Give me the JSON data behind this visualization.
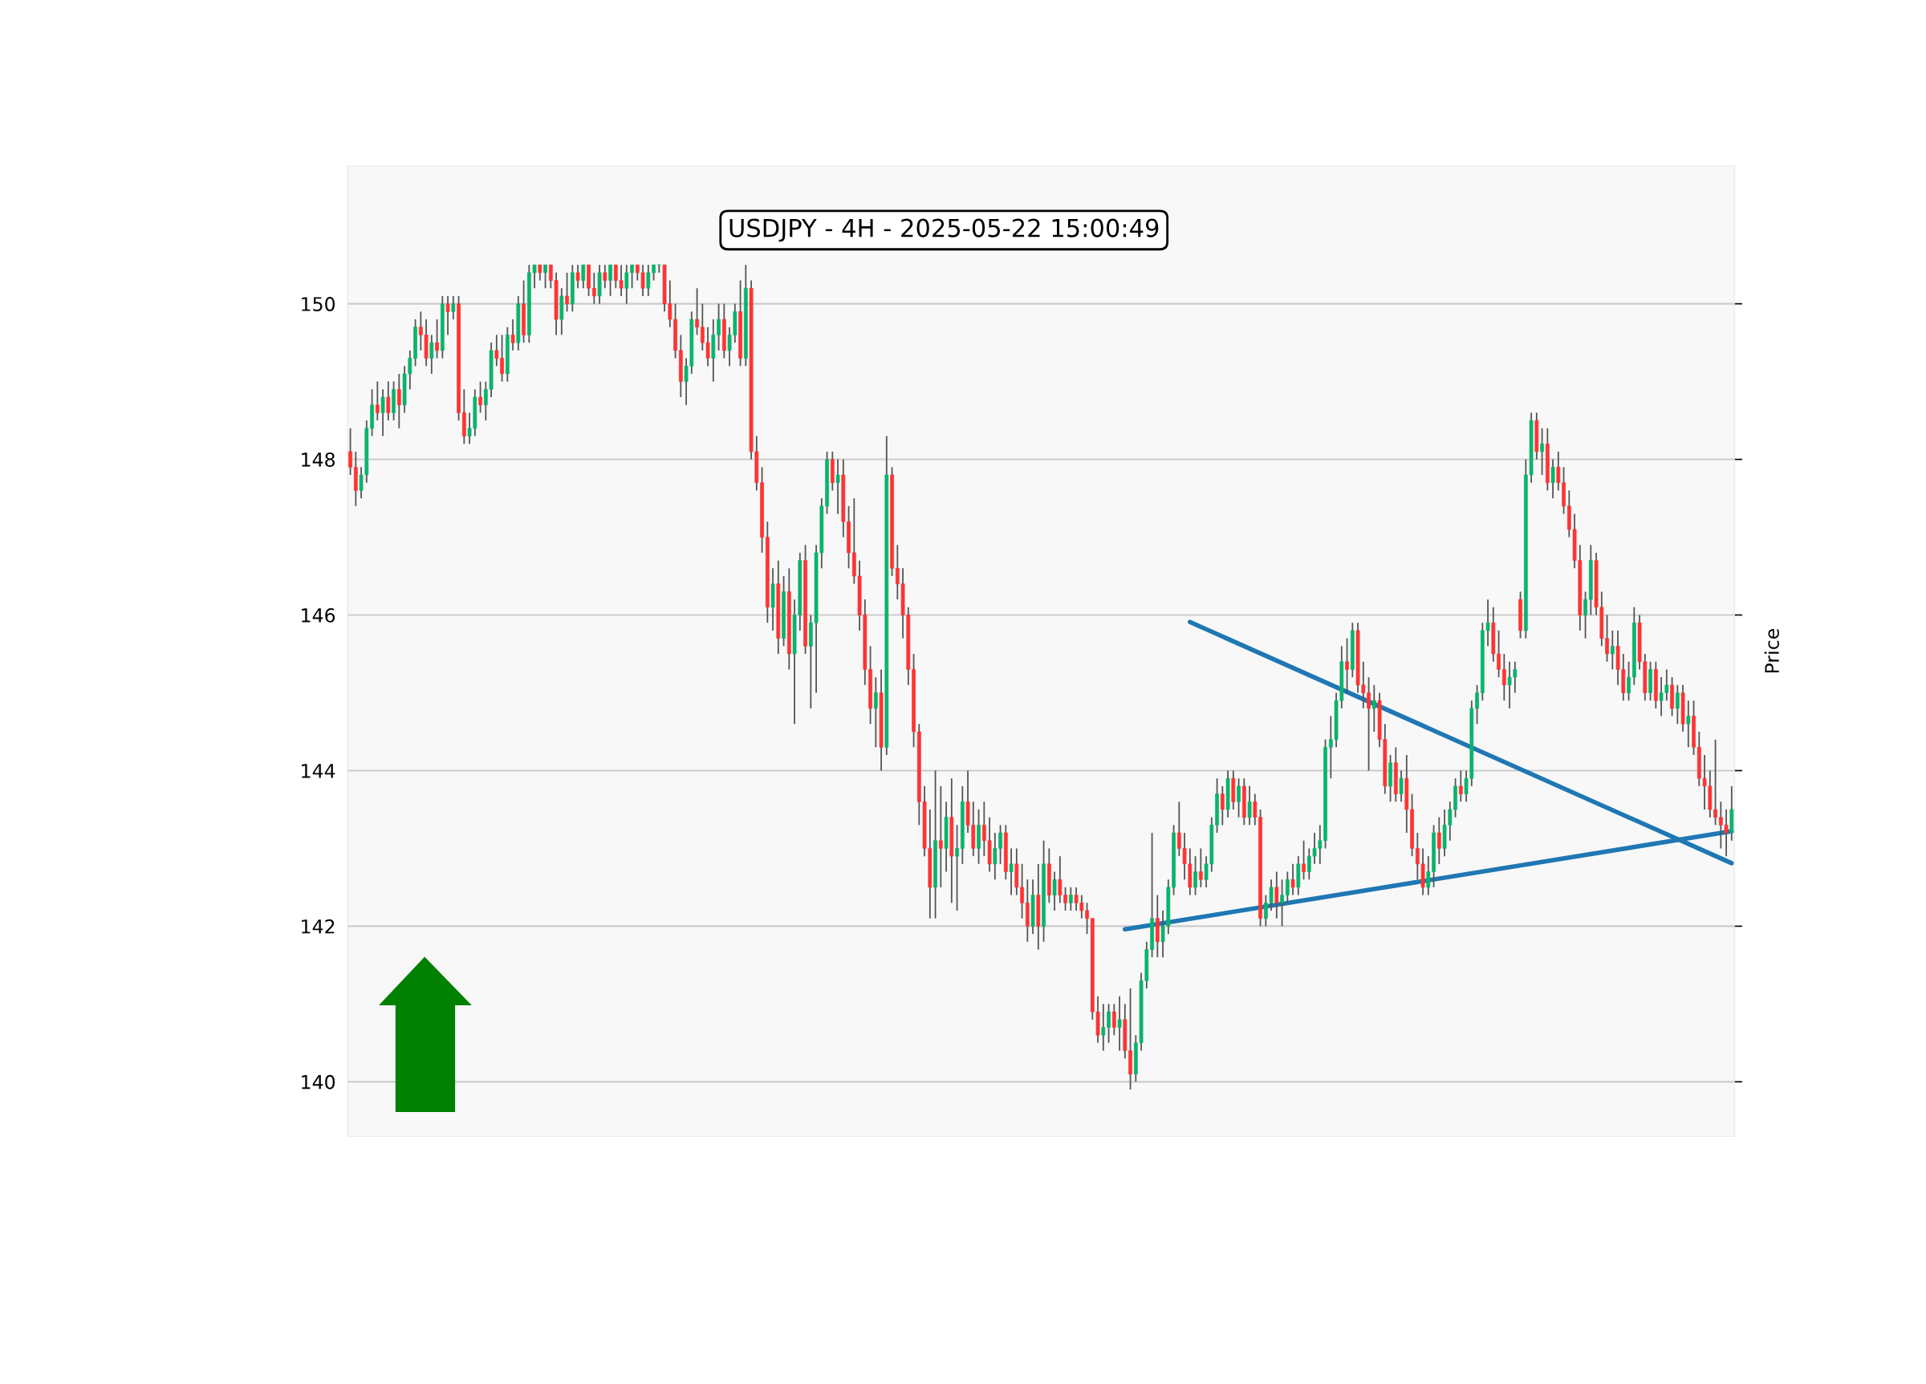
{
  "chart_data": {
    "type": "candlestick",
    "title": "USDJPY - 4H - 2025-05-22 15:00:49",
    "ylabel": "Price",
    "ylim": [
      139.3,
      151.77
    ],
    "yticks": [
      140,
      142,
      144,
      146,
      148,
      150
    ],
    "grid": "y",
    "tick_labels": "y",
    "categories": [
      null,
      null,
      null,
      null,
      null,
      null,
      null,
      null,
      null,
      null,
      null,
      null,
      null,
      null,
      null,
      null,
      null,
      null,
      null,
      null,
      null,
      null,
      null,
      null,
      null,
      null,
      null,
      null,
      null,
      null,
      null,
      null,
      null,
      null,
      null,
      null,
      null,
      null,
      null,
      null,
      null,
      null,
      null,
      null,
      null,
      null,
      null,
      null,
      null,
      null,
      null,
      null,
      null,
      null,
      null,
      null,
      null,
      null,
      null,
      null,
      null,
      null,
      null,
      null,
      null,
      null,
      null,
      null,
      null,
      null,
      null,
      null,
      null,
      null,
      null,
      null,
      null,
      null,
      null,
      null,
      null,
      null,
      null,
      null,
      null,
      null,
      null,
      null,
      null,
      null,
      null,
      null,
      null,
      null,
      null,
      null,
      null,
      null,
      null,
      null,
      null,
      null,
      null,
      null,
      null,
      null,
      null,
      null,
      null,
      null,
      null,
      null,
      null,
      null,
      null,
      null,
      null,
      null,
      null,
      null,
      null,
      null,
      null,
      null,
      null,
      null,
      null,
      null,
      null,
      null,
      null,
      null,
      null,
      null,
      null,
      null,
      null,
      null,
      null,
      null,
      null,
      null,
      null,
      null,
      null,
      null,
      null,
      null,
      null,
      null,
      null,
      null,
      null,
      null,
      null,
      null,
      null,
      null,
      null,
      null,
      null,
      null,
      null,
      null,
      null,
      null,
      null,
      null,
      null,
      null,
      null,
      null,
      null,
      null,
      null,
      null,
      null,
      null,
      null,
      null,
      null,
      null,
      null,
      null,
      null,
      null,
      null,
      null,
      null,
      null,
      null,
      null,
      null,
      null,
      null,
      null,
      null,
      null,
      null,
      null,
      null,
      null,
      null,
      null,
      null,
      null,
      null,
      null,
      null,
      null,
      null,
      null,
      null,
      null,
      null,
      null,
      null,
      null,
      null,
      null,
      null,
      null,
      null,
      null,
      null,
      null,
      null,
      null,
      null,
      null,
      null,
      null,
      null,
      null,
      null,
      null,
      null,
      null,
      null,
      null,
      null,
      null,
      null,
      null,
      null,
      null,
      null,
      null,
      null,
      null,
      null,
      null,
      null,
      null,
      null,
      null
    ],
    "ohlc": [
      [
        148.1,
        148.4,
        147.8,
        147.9
      ],
      [
        147.9,
        148.1,
        147.4,
        147.6
      ],
      [
        147.6,
        147.9,
        147.5,
        147.8
      ],
      [
        147.8,
        148.5,
        147.7,
        148.4
      ],
      [
        148.4,
        148.9,
        148.3,
        148.7
      ],
      [
        148.7,
        149.0,
        148.5,
        148.6
      ],
      [
        148.6,
        148.9,
        148.3,
        148.8
      ],
      [
        148.8,
        149.0,
        148.5,
        148.6
      ],
      [
        148.6,
        149.0,
        148.5,
        148.9
      ],
      [
        148.9,
        149.1,
        148.4,
        148.7
      ],
      [
        148.7,
        149.2,
        148.6,
        149.1
      ],
      [
        149.1,
        149.4,
        148.9,
        149.3
      ],
      [
        149.3,
        149.8,
        149.2,
        149.7
      ],
      [
        149.7,
        149.9,
        149.4,
        149.6
      ],
      [
        149.6,
        149.8,
        149.2,
        149.3
      ],
      [
        149.3,
        149.6,
        149.1,
        149.5
      ],
      [
        149.5,
        149.8,
        149.3,
        149.4
      ],
      [
        149.4,
        150.1,
        149.3,
        150.0
      ],
      [
        150.0,
        150.1,
        149.6,
        149.9
      ],
      [
        149.9,
        150.1,
        149.8,
        150.0
      ],
      [
        150.0,
        150.1,
        148.5,
        148.6
      ],
      [
        148.6,
        148.9,
        148.2,
        148.3
      ],
      [
        148.3,
        148.6,
        148.2,
        148.4
      ],
      [
        148.4,
        148.9,
        148.3,
        148.8
      ],
      [
        148.8,
        149.0,
        148.6,
        148.7
      ],
      [
        148.7,
        149.0,
        148.5,
        148.9
      ],
      [
        148.9,
        149.5,
        148.8,
        149.4
      ],
      [
        149.4,
        149.6,
        149.2,
        149.3
      ],
      [
        149.3,
        149.6,
        149.0,
        149.1
      ],
      [
        149.1,
        149.7,
        149.0,
        149.6
      ],
      [
        149.6,
        149.8,
        149.4,
        149.5
      ],
      [
        149.5,
        150.1,
        149.4,
        150.0
      ],
      [
        150.0,
        150.3,
        149.5,
        149.6
      ],
      [
        149.6,
        150.5,
        149.5,
        150.4
      ],
      [
        150.4,
        150.5,
        150.2,
        150.5
      ],
      [
        150.5,
        150.5,
        150.3,
        150.4
      ],
      [
        150.4,
        150.5,
        150.2,
        150.5
      ],
      [
        150.5,
        150.5,
        150.2,
        150.3
      ],
      [
        150.3,
        150.4,
        149.6,
        149.8
      ],
      [
        149.8,
        150.2,
        149.6,
        150.1
      ],
      [
        150.1,
        150.4,
        149.9,
        150.0
      ],
      [
        150.0,
        150.5,
        149.9,
        150.4
      ],
      [
        150.4,
        150.5,
        150.2,
        150.3
      ],
      [
        150.3,
        150.5,
        150.2,
        150.5
      ],
      [
        150.5,
        150.5,
        150.1,
        150.2
      ],
      [
        150.2,
        150.4,
        150.0,
        150.1
      ],
      [
        150.1,
        150.5,
        150.0,
        150.4
      ],
      [
        150.4,
        150.5,
        150.2,
        150.3
      ],
      [
        150.3,
        150.5,
        150.1,
        150.5
      ],
      [
        150.5,
        150.5,
        150.2,
        150.3
      ],
      [
        150.3,
        150.5,
        150.1,
        150.2
      ],
      [
        150.2,
        150.5,
        150.0,
        150.4
      ],
      [
        150.4,
        150.5,
        150.2,
        150.5
      ],
      [
        150.5,
        150.5,
        150.3,
        150.4
      ],
      [
        150.4,
        150.5,
        150.1,
        150.2
      ],
      [
        150.2,
        150.5,
        150.1,
        150.4
      ],
      [
        150.4,
        150.5,
        150.3,
        150.5
      ],
      [
        150.5,
        150.5,
        150.4,
        150.5
      ],
      [
        150.5,
        150.5,
        149.9,
        150.0
      ],
      [
        150.0,
        150.3,
        149.7,
        149.8
      ],
      [
        149.8,
        150.0,
        149.3,
        149.4
      ],
      [
        149.4,
        149.6,
        148.8,
        149.0
      ],
      [
        149.0,
        149.3,
        148.7,
        149.2
      ],
      [
        149.2,
        149.9,
        149.1,
        149.8
      ],
      [
        149.8,
        150.2,
        149.6,
        149.7
      ],
      [
        149.7,
        150.0,
        149.4,
        149.5
      ],
      [
        149.5,
        149.7,
        149.2,
        149.3
      ],
      [
        149.3,
        149.8,
        149.0,
        149.6
      ],
      [
        149.6,
        150.0,
        149.4,
        149.8
      ],
      [
        149.8,
        150.0,
        149.3,
        149.4
      ],
      [
        149.4,
        149.7,
        149.2,
        149.6
      ],
      [
        149.6,
        150.0,
        149.5,
        149.9
      ],
      [
        149.9,
        150.3,
        149.2,
        149.3
      ],
      [
        149.3,
        150.5,
        149.2,
        150.2
      ],
      [
        150.2,
        150.3,
        148.0,
        148.1
      ],
      [
        148.1,
        148.3,
        147.6,
        147.7
      ],
      [
        147.7,
        147.9,
        146.8,
        147.0
      ],
      [
        147.0,
        147.2,
        145.9,
        146.1
      ],
      [
        146.1,
        146.6,
        145.8,
        146.4
      ],
      [
        146.4,
        146.7,
        145.5,
        145.7
      ],
      [
        145.7,
        146.5,
        145.6,
        146.3
      ],
      [
        146.3,
        146.6,
        145.3,
        145.5
      ],
      [
        145.5,
        146.2,
        144.6,
        146.0
      ],
      [
        146.0,
        146.8,
        145.8,
        146.7
      ],
      [
        146.7,
        146.9,
        145.5,
        145.6
      ],
      [
        145.6,
        146.0,
        144.8,
        145.9
      ],
      [
        145.9,
        146.9,
        145.0,
        146.8
      ],
      [
        146.8,
        147.5,
        146.6,
        147.4
      ],
      [
        147.4,
        148.1,
        147.3,
        148.0
      ],
      [
        148.0,
        148.1,
        147.6,
        147.7
      ],
      [
        147.7,
        148.0,
        147.3,
        147.8
      ],
      [
        147.8,
        148.0,
        147.0,
        147.2
      ],
      [
        147.2,
        147.4,
        146.6,
        146.8
      ],
      [
        146.8,
        147.5,
        146.4,
        146.5
      ],
      [
        146.5,
        146.7,
        145.8,
        146.0
      ],
      [
        146.0,
        146.2,
        145.1,
        145.3
      ],
      [
        145.3,
        145.6,
        144.6,
        144.8
      ],
      [
        144.8,
        145.2,
        144.3,
        145.0
      ],
      [
        145.0,
        145.3,
        144.0,
        144.3
      ],
      [
        144.3,
        148.3,
        144.2,
        147.8
      ],
      [
        147.8,
        147.9,
        146.5,
        146.6
      ],
      [
        146.6,
        146.9,
        146.2,
        146.4
      ],
      [
        146.4,
        146.6,
        145.7,
        146.0
      ],
      [
        146.0,
        146.1,
        145.1,
        145.3
      ],
      [
        145.3,
        145.5,
        144.3,
        144.5
      ],
      [
        144.5,
        144.6,
        143.3,
        143.6
      ],
      [
        143.6,
        143.8,
        142.9,
        143.0
      ],
      [
        143.0,
        143.5,
        142.1,
        142.5
      ],
      [
        142.5,
        144.0,
        142.1,
        143.1
      ],
      [
        143.1,
        143.8,
        142.5,
        143.0
      ],
      [
        143.0,
        143.6,
        142.7,
        143.4
      ],
      [
        143.4,
        143.9,
        142.3,
        142.9
      ],
      [
        142.9,
        143.3,
        142.2,
        143.0
      ],
      [
        143.0,
        143.8,
        142.8,
        143.6
      ],
      [
        143.6,
        144.0,
        143.2,
        143.3
      ],
      [
        143.3,
        143.6,
        142.9,
        143.0
      ],
      [
        143.0,
        143.5,
        142.8,
        143.3
      ],
      [
        143.3,
        143.6,
        142.9,
        143.1
      ],
      [
        143.1,
        143.4,
        142.7,
        142.8
      ],
      [
        142.8,
        143.2,
        142.6,
        143.0
      ],
      [
        143.0,
        143.3,
        142.8,
        143.2
      ],
      [
        143.2,
        143.3,
        142.6,
        142.7
      ],
      [
        142.7,
        143.0,
        142.4,
        142.8
      ],
      [
        142.8,
        143.0,
        142.4,
        142.5
      ],
      [
        142.5,
        142.8,
        142.1,
        142.3
      ],
      [
        142.3,
        142.6,
        141.8,
        142.0
      ],
      [
        142.0,
        142.6,
        141.9,
        142.4
      ],
      [
        142.4,
        142.8,
        141.7,
        142.0
      ],
      [
        142.0,
        143.1,
        141.8,
        142.8
      ],
      [
        142.8,
        143.0,
        142.3,
        142.4
      ],
      [
        142.4,
        142.7,
        142.2,
        142.6
      ],
      [
        142.6,
        142.9,
        142.3,
        142.4
      ],
      [
        142.4,
        142.5,
        142.2,
        142.3
      ],
      [
        142.3,
        142.5,
        142.2,
        142.4
      ],
      [
        142.4,
        142.5,
        142.2,
        142.3
      ],
      [
        142.3,
        142.4,
        142.1,
        142.2
      ],
      [
        142.2,
        142.3,
        141.9,
        142.1
      ],
      [
        142.1,
        142.1,
        140.8,
        140.9
      ],
      [
        140.9,
        141.1,
        140.5,
        140.6
      ],
      [
        140.6,
        141.0,
        140.4,
        140.7
      ],
      [
        140.7,
        141.0,
        140.5,
        140.9
      ],
      [
        140.9,
        141.0,
        140.6,
        140.7
      ],
      [
        140.7,
        141.1,
        140.4,
        140.8
      ],
      [
        140.8,
        141.0,
        140.3,
        140.4
      ],
      [
        140.4,
        141.2,
        139.9,
        140.1
      ],
      [
        140.1,
        140.6,
        140.0,
        140.5
      ],
      [
        140.5,
        141.4,
        140.4,
        141.3
      ],
      [
        141.3,
        141.8,
        141.2,
        141.7
      ],
      [
        141.7,
        143.2,
        141.6,
        142.1
      ],
      [
        142.1,
        142.4,
        141.6,
        141.8
      ],
      [
        141.8,
        142.2,
        141.6,
        142.0
      ],
      [
        142.0,
        142.6,
        141.9,
        142.5
      ],
      [
        142.5,
        143.3,
        142.4,
        143.2
      ],
      [
        143.2,
        143.6,
        142.9,
        143.0
      ],
      [
        143.0,
        143.2,
        142.6,
        142.8
      ],
      [
        142.8,
        143.0,
        142.4,
        142.5
      ],
      [
        142.5,
        142.9,
        142.4,
        142.7
      ],
      [
        142.7,
        143.0,
        142.5,
        142.6
      ],
      [
        142.6,
        142.9,
        142.5,
        142.8
      ],
      [
        142.8,
        143.4,
        142.7,
        143.3
      ],
      [
        143.3,
        143.9,
        143.2,
        143.7
      ],
      [
        143.7,
        143.8,
        143.3,
        143.5
      ],
      [
        143.5,
        144.0,
        143.4,
        143.9
      ],
      [
        143.9,
        144.0,
        143.5,
        143.6
      ],
      [
        143.6,
        143.9,
        143.4,
        143.8
      ],
      [
        143.8,
        143.9,
        143.3,
        143.4
      ],
      [
        143.4,
        143.8,
        143.3,
        143.6
      ],
      [
        143.6,
        143.7,
        143.3,
        143.4
      ],
      [
        143.4,
        143.5,
        142.0,
        142.1
      ],
      [
        142.1,
        142.4,
        142.0,
        142.3
      ],
      [
        142.3,
        142.6,
        142.2,
        142.5
      ],
      [
        142.5,
        142.7,
        142.1,
        142.3
      ],
      [
        142.3,
        142.6,
        142.0,
        142.4
      ],
      [
        142.4,
        142.7,
        142.3,
        142.6
      ],
      [
        142.6,
        142.8,
        142.4,
        142.5
      ],
      [
        142.5,
        142.9,
        142.4,
        142.8
      ],
      [
        142.8,
        143.1,
        142.6,
        142.7
      ],
      [
        142.7,
        143.0,
        142.6,
        142.9
      ],
      [
        142.9,
        143.2,
        142.8,
        143.0
      ],
      [
        143.0,
        143.3,
        142.8,
        143.1
      ],
      [
        143.1,
        144.4,
        143.0,
        144.3
      ],
      [
        144.3,
        144.7,
        143.9,
        144.4
      ],
      [
        144.4,
        145.0,
        144.3,
        144.9
      ],
      [
        144.9,
        145.6,
        144.8,
        145.4
      ],
      [
        145.4,
        145.7,
        145.0,
        145.3
      ],
      [
        145.3,
        145.9,
        145.2,
        145.8
      ],
      [
        145.8,
        145.9,
        145.0,
        145.1
      ],
      [
        145.1,
        145.4,
        144.8,
        145.0
      ],
      [
        145.0,
        145.2,
        144.0,
        144.8
      ],
      [
        144.8,
        145.1,
        144.5,
        144.9
      ],
      [
        144.9,
        145.0,
        144.3,
        144.4
      ],
      [
        144.4,
        144.6,
        143.7,
        143.8
      ],
      [
        143.8,
        144.2,
        143.6,
        144.1
      ],
      [
        144.1,
        144.3,
        143.6,
        143.7
      ],
      [
        143.7,
        144.0,
        143.6,
        143.9
      ],
      [
        143.9,
        144.2,
        143.2,
        143.5
      ],
      [
        143.5,
        143.7,
        142.9,
        143.0
      ],
      [
        143.0,
        143.2,
        142.6,
        142.8
      ],
      [
        142.8,
        143.0,
        142.4,
        142.5
      ],
      [
        142.5,
        142.9,
        142.4,
        142.7
      ],
      [
        142.7,
        143.3,
        142.5,
        143.2
      ],
      [
        143.2,
        143.4,
        142.8,
        143.0
      ],
      [
        143.0,
        143.5,
        142.9,
        143.3
      ],
      [
        143.3,
        143.6,
        143.1,
        143.5
      ],
      [
        143.5,
        143.9,
        143.4,
        143.8
      ],
      [
        143.8,
        144.0,
        143.6,
        143.7
      ],
      [
        143.7,
        144.0,
        143.6,
        143.9
      ],
      [
        143.9,
        144.9,
        143.8,
        144.8
      ],
      [
        144.8,
        145.1,
        144.6,
        145.0
      ],
      [
        145.0,
        145.9,
        144.9,
        145.8
      ],
      [
        145.8,
        146.2,
        145.6,
        145.9
      ],
      [
        145.9,
        146.1,
        145.4,
        145.5
      ],
      [
        145.5,
        145.8,
        145.2,
        145.3
      ],
      [
        145.3,
        145.5,
        144.9,
        145.1
      ],
      [
        145.1,
        145.4,
        144.8,
        145.2
      ],
      [
        145.2,
        145.4,
        145.0,
        145.3
      ],
      [
        146.2,
        146.3,
        145.7,
        145.8
      ],
      [
        145.8,
        148.0,
        145.7,
        147.8
      ],
      [
        147.8,
        148.6,
        147.7,
        148.5
      ],
      [
        148.5,
        148.6,
        148.0,
        148.1
      ],
      [
        148.1,
        148.4,
        147.8,
        148.2
      ],
      [
        148.2,
        148.4,
        147.6,
        147.7
      ],
      [
        147.7,
        148.0,
        147.5,
        147.9
      ],
      [
        147.9,
        148.1,
        147.6,
        147.7
      ],
      [
        147.7,
        147.9,
        147.3,
        147.4
      ],
      [
        147.4,
        147.6,
        147.0,
        147.1
      ],
      [
        147.1,
        147.3,
        146.6,
        146.7
      ],
      [
        146.7,
        146.9,
        145.8,
        146.0
      ],
      [
        146.0,
        146.3,
        145.7,
        146.2
      ],
      [
        146.2,
        146.9,
        146.0,
        146.7
      ],
      [
        146.7,
        146.8,
        146.0,
        146.1
      ],
      [
        146.1,
        146.3,
        145.6,
        145.7
      ],
      [
        145.7,
        146.0,
        145.4,
        145.5
      ],
      [
        145.5,
        145.8,
        145.3,
        145.6
      ],
      [
        145.6,
        145.8,
        145.1,
        145.3
      ],
      [
        145.3,
        145.5,
        144.9,
        145.0
      ],
      [
        145.0,
        145.4,
        144.9,
        145.2
      ],
      [
        145.2,
        146.1,
        145.1,
        145.9
      ],
      [
        145.9,
        146.0,
        145.3,
        145.4
      ],
      [
        145.4,
        145.5,
        144.9,
        145.0
      ],
      [
        145.0,
        145.4,
        144.9,
        145.3
      ],
      [
        145.3,
        145.4,
        144.8,
        144.9
      ],
      [
        144.9,
        145.2,
        144.7,
        145.0
      ],
      [
        145.0,
        145.3,
        144.9,
        145.1
      ],
      [
        145.1,
        145.2,
        144.7,
        144.8
      ],
      [
        144.8,
        145.1,
        144.6,
        145.0
      ],
      [
        145.0,
        145.1,
        144.5,
        144.6
      ],
      [
        144.6,
        144.9,
        144.3,
        144.7
      ],
      [
        144.7,
        144.9,
        144.2,
        144.3
      ],
      [
        144.3,
        144.5,
        143.8,
        143.9
      ],
      [
        143.9,
        144.2,
        143.5,
        143.8
      ],
      [
        143.8,
        144.0,
        143.4,
        143.5
      ],
      [
        143.5,
        144.4,
        143.3,
        143.4
      ],
      [
        143.4,
        143.6,
        143.0,
        143.3
      ],
      [
        143.3,
        143.5,
        142.9,
        143.2
      ],
      [
        143.2,
        143.8,
        143.1,
        143.5
      ]
    ],
    "series": [
      {
        "type": "line",
        "color": "#1f77b4",
        "values": [
          null,
          null,
          null,
          null,
          null,
          null,
          null,
          null,
          null,
          null,
          null,
          null,
          null,
          null,
          null,
          null,
          null,
          null,
          null,
          null,
          null,
          null,
          null,
          null,
          null,
          null,
          null,
          null,
          null,
          null,
          null,
          null,
          null,
          null,
          null,
          null,
          null,
          null,
          null,
          null,
          null,
          null,
          null,
          null,
          null,
          null,
          null,
          null,
          null,
          null,
          null,
          null,
          null,
          null,
          null,
          null,
          null,
          null,
          null,
          null,
          null,
          null,
          null,
          null,
          null,
          null,
          null,
          null,
          null,
          null,
          null,
          null,
          null,
          null,
          null,
          null,
          null,
          null,
          null,
          null,
          null,
          null,
          null,
          null,
          null,
          null,
          null,
          null,
          null,
          null,
          null,
          null,
          null,
          null,
          null,
          null,
          null,
          null,
          null,
          null,
          null,
          null,
          null,
          null,
          null,
          null,
          null,
          null,
          null,
          null,
          null,
          null,
          null,
          null,
          null,
          null,
          null,
          null,
          null,
          null,
          null,
          null,
          null,
          null,
          null,
          null,
          null,
          null,
          null,
          null,
          null,
          null,
          null,
          null,
          null,
          null,
          null,
          null,
          null,
          null,
          null,
          null,
          null,
          null,
          null,
          null,
          null,
          null,
          null,
          null,
          null,
          null,
          null,
          null,
          null,
          145.91,
          null,
          null,
          null,
          null,
          null,
          null,
          null,
          null,
          null,
          null,
          null,
          null,
          null,
          null,
          null,
          null,
          null,
          null,
          null,
          null,
          null,
          null,
          null,
          null,
          null,
          null,
          null,
          null,
          null,
          null,
          null,
          null,
          null,
          null,
          null,
          null,
          null,
          null,
          null,
          null,
          null,
          null,
          null,
          null,
          null,
          null,
          null,
          null,
          null,
          null,
          null,
          null,
          null,
          null,
          null,
          null,
          null,
          null,
          null,
          null,
          null,
          null,
          null,
          null,
          null,
          null,
          null,
          null,
          null,
          null,
          null,
          null,
          null,
          null,
          null,
          null,
          null,
          null,
          null,
          null,
          null,
          null,
          null,
          null,
          null,
          null,
          null,
          null,
          null,
          null,
          null,
          null,
          null,
          null,
          null,
          null,
          null,
          null,
          null,
          142.81
        ]
      },
      {
        "type": "line",
        "color": "#1f77b4",
        "values": [
          null,
          null,
          null,
          null,
          null,
          null,
          null,
          null,
          null,
          null,
          null,
          null,
          null,
          null,
          null,
          null,
          null,
          null,
          null,
          null,
          null,
          null,
          null,
          null,
          null,
          null,
          null,
          null,
          null,
          null,
          null,
          null,
          null,
          null,
          null,
          null,
          null,
          null,
          null,
          null,
          null,
          null,
          null,
          null,
          null,
          null,
          null,
          null,
          null,
          null,
          null,
          null,
          null,
          null,
          null,
          null,
          null,
          null,
          null,
          null,
          null,
          null,
          null,
          null,
          null,
          null,
          null,
          null,
          null,
          null,
          null,
          null,
          null,
          null,
          null,
          null,
          null,
          null,
          null,
          null,
          null,
          null,
          null,
          null,
          null,
          null,
          null,
          null,
          null,
          null,
          null,
          null,
          null,
          null,
          null,
          null,
          null,
          null,
          null,
          null,
          null,
          null,
          null,
          null,
          null,
          null,
          null,
          null,
          null,
          null,
          null,
          null,
          null,
          null,
          null,
          null,
          null,
          null,
          null,
          null,
          null,
          null,
          null,
          null,
          null,
          null,
          null,
          null,
          null,
          null,
          null,
          null,
          null,
          null,
          null,
          null,
          null,
          null,
          null,
          null,
          null,
          null,
          null,
          141.96,
          null,
          null,
          null,
          null,
          null,
          null,
          null,
          null,
          null,
          null,
          null,
          null,
          null,
          null,
          null,
          null,
          null,
          null,
          null,
          null,
          null,
          null,
          null,
          null,
          null,
          null,
          null,
          null,
          null,
          null,
          null,
          null,
          null,
          null,
          null,
          null,
          null,
          null,
          null,
          null,
          null,
          null,
          null,
          null,
          null,
          null,
          null,
          null,
          null,
          null,
          null,
          null,
          null,
          null,
          null,
          null,
          null,
          null,
          null,
          null,
          null,
          null,
          null,
          null,
          null,
          null,
          null,
          null,
          null,
          null,
          null,
          null,
          null,
          null,
          null,
          null,
          null,
          null,
          null,
          null,
          null,
          null,
          null,
          null,
          null,
          null,
          null,
          null,
          null,
          null,
          null,
          null,
          null,
          null,
          null,
          null,
          null,
          null,
          null,
          null,
          null,
          null,
          null,
          null,
          null,
          null,
          null,
          null,
          null,
          null,
          null,
          143.22
        ]
      }
    ]
  }
}
